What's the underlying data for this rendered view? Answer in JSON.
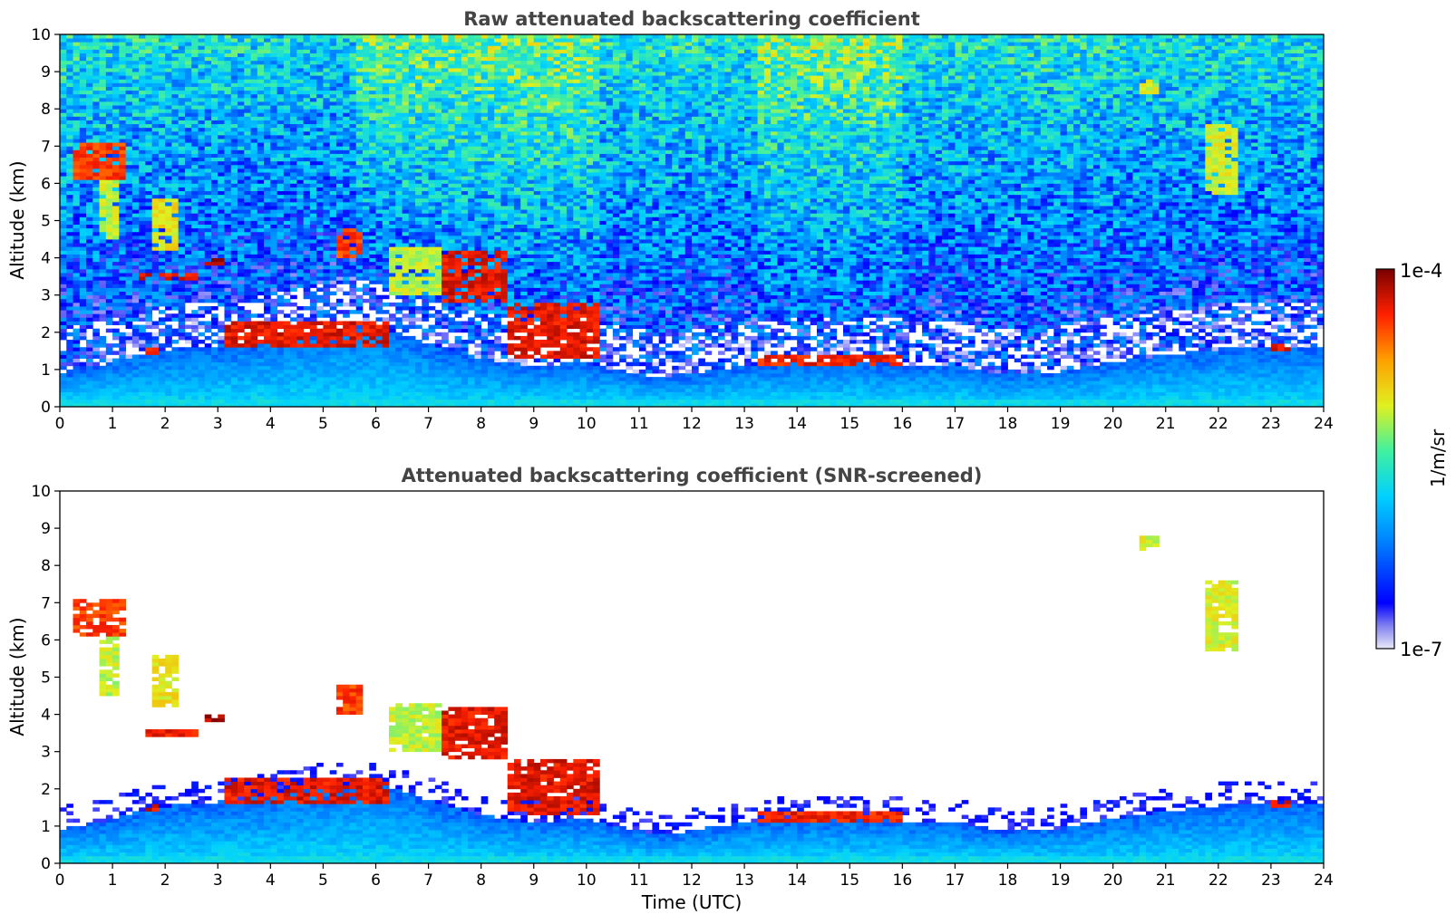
{
  "chart_data": [
    {
      "type": "heatmap",
      "title": "Raw attenuated backscattering coefficient",
      "xlabel": "",
      "ylabel": "Altitude (km)",
      "xlim": [
        0,
        24
      ],
      "ylim": [
        0,
        10
      ],
      "xticks": [
        "0",
        "1",
        "2",
        "3",
        "4",
        "5",
        "6",
        "7",
        "8",
        "9",
        "10",
        "11",
        "12",
        "13",
        "14",
        "15",
        "16",
        "17",
        "18",
        "19",
        "20",
        "21",
        "22",
        "23",
        "24"
      ],
      "yticks": [
        "0",
        "1",
        "2",
        "3",
        "4",
        "5",
        "6",
        "7",
        "8",
        "9",
        "10"
      ],
      "screened": false
    },
    {
      "type": "heatmap",
      "title": "Attenuated backscattering coefficient (SNR-screened)",
      "xlabel": "Time (UTC)",
      "ylabel": "Altitude (km)",
      "xlim": [
        0,
        24
      ],
      "ylim": [
        0,
        10
      ],
      "xticks": [
        "0",
        "1",
        "2",
        "3",
        "4",
        "5",
        "6",
        "7",
        "8",
        "9",
        "10",
        "11",
        "12",
        "13",
        "14",
        "15",
        "16",
        "17",
        "18",
        "19",
        "20",
        "21",
        "22",
        "23",
        "24"
      ],
      "yticks": [
        "0",
        "1",
        "2",
        "3",
        "4",
        "5",
        "6",
        "7",
        "8",
        "9",
        "10"
      ],
      "screened": true
    }
  ],
  "colorbar": {
    "label": "1/m/sr",
    "max_label": "1e-4",
    "min_label": "1e-7",
    "scale": "log",
    "colormap": "jet",
    "colors": [
      "#e8e8f8",
      "#0000ff",
      "#0080ff",
      "#00d0ff",
      "#40f0a0",
      "#e0f020",
      "#ffa000",
      "#ff2000",
      "#7a0000"
    ]
  },
  "features": {
    "boundary_layer_top": [
      {
        "t": 0,
        "h": 0.9
      },
      {
        "t": 1,
        "h": 1.2
      },
      {
        "t": 1.7,
        "h": 1.5
      },
      {
        "t": 3,
        "h": 1.65
      },
      {
        "t": 4,
        "h": 1.8
      },
      {
        "t": 5,
        "h": 2.1
      },
      {
        "t": 6,
        "h": 2.2
      },
      {
        "t": 7,
        "h": 1.7
      },
      {
        "t": 8,
        "h": 1.3
      },
      {
        "t": 9,
        "h": 1.1
      },
      {
        "t": 10,
        "h": 1.2
      },
      {
        "t": 10.5,
        "h": 1.0
      },
      {
        "t": 11,
        "h": 0.9
      },
      {
        "t": 11.5,
        "h": 0.75
      },
      {
        "t": 12,
        "h": 0.9
      },
      {
        "t": 13,
        "h": 1.1
      },
      {
        "t": 14,
        "h": 1.2
      },
      {
        "t": 15,
        "h": 1.2
      },
      {
        "t": 16,
        "h": 1.15
      },
      {
        "t": 17,
        "h": 1.1
      },
      {
        "t": 18,
        "h": 0.85
      },
      {
        "t": 19,
        "h": 0.95
      },
      {
        "t": 20,
        "h": 1.2
      },
      {
        "t": 21,
        "h": 1.4
      },
      {
        "t": 22,
        "h": 1.55
      },
      {
        "t": 23,
        "h": 1.6
      },
      {
        "t": 24,
        "h": 1.6
      }
    ],
    "cloud_layers": [
      {
        "t0": 0.2,
        "t1": 1.2,
        "h0": 6.1,
        "h1": 7.1,
        "level": 0.85
      },
      {
        "t0": 0.7,
        "t1": 1.1,
        "h0": 4.5,
        "h1": 6.3,
        "level": 0.6
      },
      {
        "t0": 1.8,
        "t1": 2.3,
        "h0": 4.2,
        "h1": 5.6,
        "level": 0.65
      },
      {
        "t0": 1.5,
        "t1": 2.6,
        "h0": 3.4,
        "h1": 3.6,
        "level": 0.9
      },
      {
        "t0": 2.7,
        "t1": 3.1,
        "h0": 3.8,
        "h1": 4.0,
        "level": 0.95
      },
      {
        "t0": 1.6,
        "t1": 1.9,
        "h0": 1.4,
        "h1": 1.55,
        "level": 0.9
      },
      {
        "t0": 3.1,
        "t1": 6.3,
        "h0": 1.65,
        "h1": 2.3,
        "level": 0.9
      },
      {
        "t0": 5.3,
        "t1": 5.8,
        "h0": 4.0,
        "h1": 4.8,
        "level": 0.85
      },
      {
        "t0": 6.3,
        "t1": 7.3,
        "h0": 3.0,
        "h1": 4.3,
        "level": 0.6
      },
      {
        "t0": 7.3,
        "t1": 8.5,
        "h0": 2.8,
        "h1": 4.2,
        "level": 0.9
      },
      {
        "t0": 8.5,
        "t1": 10.2,
        "h0": 1.3,
        "h1": 2.8,
        "level": 0.9
      },
      {
        "t0": 13.3,
        "t1": 16.0,
        "h0": 1.15,
        "h1": 1.4,
        "level": 0.88
      },
      {
        "t0": 20.5,
        "t1": 20.9,
        "h0": 8.4,
        "h1": 8.8,
        "level": 0.62
      },
      {
        "t0": 21.8,
        "t1": 22.4,
        "h0": 5.7,
        "h1": 7.6,
        "level": 0.62
      },
      {
        "t0": 23.0,
        "t1": 23.4,
        "h0": 1.55,
        "h1": 1.7,
        "level": 0.9
      }
    ],
    "dense_signal_periods": [
      {
        "t0": 5.6,
        "t1": 10.2
      },
      {
        "t0": 13.3,
        "t1": 16.0
      }
    ]
  }
}
